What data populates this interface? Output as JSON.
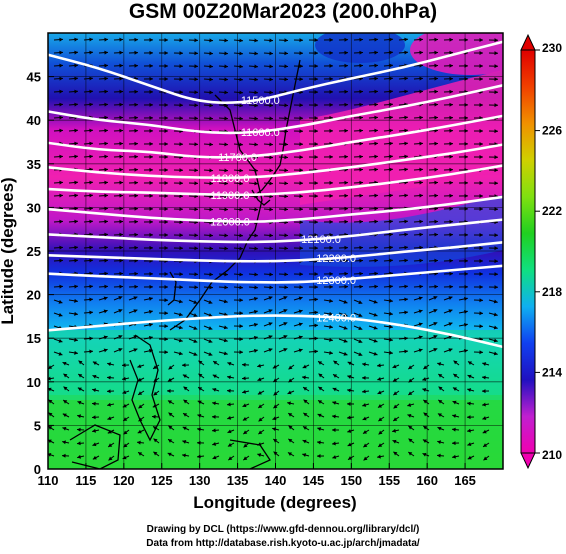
{
  "title": "GSM 00Z20Mar2023 (200.0hPa)",
  "x_axis": {
    "label": "Longitude (degrees)",
    "min": 110,
    "max": 170,
    "ticks": [
      110,
      115,
      120,
      125,
      130,
      135,
      140,
      145,
      150,
      155,
      160,
      165
    ]
  },
  "y_axis": {
    "label": "Latitude  (degrees)",
    "min": 0,
    "max": 50,
    "ticks": [
      0,
      5,
      10,
      15,
      20,
      25,
      30,
      35,
      40,
      45
    ]
  },
  "colorbar": {
    "min": 210,
    "max": 230,
    "tick_labels": [
      "230",
      "226",
      "222",
      "218",
      "214",
      "210"
    ],
    "tick_values": [
      230,
      226,
      222,
      218,
      214,
      210
    ],
    "colors": [
      "#f000b0",
      "#c020d0",
      "#2010c0",
      "#1040f0",
      "#10b0f0",
      "#10e080",
      "#20d020",
      "#80e010",
      "#d0d000",
      "#f09000",
      "#f04000",
      "#e00000"
    ]
  },
  "contours": [
    {
      "label": "11500.0",
      "lat": [
        47.5,
        46,
        44,
        42,
        42,
        43.5,
        44.8,
        46,
        47.5,
        49
      ]
    },
    {
      "label": "11600.0",
      "lat": [
        41,
        40,
        39.5,
        38.6,
        38.5,
        39.3,
        40.5,
        41.5,
        42.7,
        44
      ]
    },
    {
      "label": "11700.0",
      "lat": [
        37.4,
        36.6,
        36.4,
        35.7,
        35.8,
        36.5,
        37.5,
        38.4,
        39.4,
        40.5
      ]
    },
    {
      "label": "11800.0",
      "lat": [
        34.6,
        34,
        33.6,
        33.4,
        33.4,
        33.9,
        34.6,
        35.4,
        36.2,
        37.2
      ]
    },
    {
      "label": "11900.0",
      "lat": [
        32.1,
        31.8,
        31.7,
        31.5,
        31.4,
        31.7,
        32.3,
        33,
        33.8,
        34.8
      ]
    },
    {
      "label": "12000.0",
      "lat": [
        29.8,
        29.3,
        28.8,
        28.5,
        28.3,
        28.6,
        29.2,
        29.7,
        30.4,
        31.2
      ]
    },
    {
      "label": "12100.0",
      "lat": [
        26.9,
        26.6,
        26.3,
        26.1,
        26,
        26.2,
        26.7,
        27.4,
        28,
        28.6
      ]
    },
    {
      "label": "12200.0",
      "lat": [
        24.5,
        24.3,
        24.1,
        23.9,
        23.8,
        23.9,
        24.3,
        24.9,
        25.4,
        26
      ]
    },
    {
      "label": "12300.0",
      "lat": [
        22.4,
        22.1,
        21.9,
        21.6,
        21.4,
        21.4,
        21.8,
        22.3,
        22.8,
        23.3
      ]
    },
    {
      "label": "12400.0",
      "lat": [
        15.9,
        16.4,
        16.9,
        17.3,
        17.6,
        17.6,
        17.3,
        16.5,
        15.4,
        14
      ]
    }
  ],
  "credits": {
    "line1": "Drawing by DCL (https://www.gfd-dennou.org/library/dcl/)",
    "line2": "Data from http://database.rish.kyoto-u.ac.jp/arch/jmadata/"
  }
}
